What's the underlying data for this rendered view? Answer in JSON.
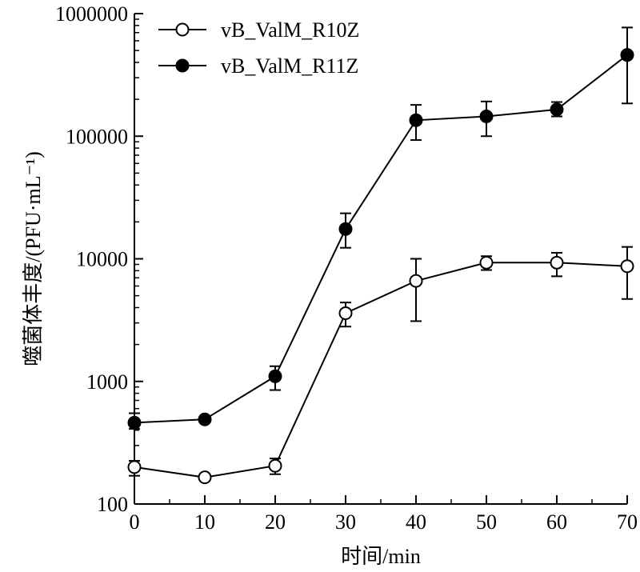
{
  "chart_data": {
    "type": "line",
    "title": "",
    "xlabel": "时间/min",
    "ylabel": "噬菌体丰度/(PFU·mL⁻¹)",
    "y_scale": "log",
    "xlim": [
      0,
      70
    ],
    "ylim": [
      100,
      1000000
    ],
    "x_ticks": [
      0,
      10,
      20,
      30,
      40,
      50,
      60,
      70
    ],
    "x_tick_labels": [
      "0",
      "10",
      "20",
      "30",
      "40",
      "50",
      "60",
      "70"
    ],
    "y_ticks": [
      100,
      1000,
      10000,
      100000,
      1000000
    ],
    "y_tick_labels": [
      "100",
      "1000",
      "10000",
      "100000",
      "1000000"
    ],
    "grid": false,
    "legend_position": "top-left",
    "x": [
      0,
      10,
      20,
      30,
      40,
      50,
      60,
      70
    ],
    "series": [
      {
        "name": "vB_ValM_R10Z",
        "marker": "open-circle",
        "color": "#000000",
        "values": [
          200,
          165,
          205,
          3600,
          6600,
          9300,
          9300,
          8700
        ],
        "error_low": [
          170,
          155,
          175,
          2800,
          3100,
          8100,
          7200,
          4700
        ],
        "error_high": [
          225,
          175,
          235,
          4400,
          10000,
          10500,
          11200,
          12500
        ]
      },
      {
        "name": "vB_ValM_R11Z",
        "marker": "filled-circle",
        "color": "#000000",
        "values": [
          460,
          490,
          1100,
          17500,
          135000,
          145000,
          165000,
          460000
        ],
        "error_low": [
          410,
          460,
          850,
          12300,
          93000,
          100000,
          145000,
          185000
        ],
        "error_high": [
          550,
          520,
          1330,
          23500,
          180000,
          192000,
          190000,
          770000
        ]
      }
    ]
  }
}
